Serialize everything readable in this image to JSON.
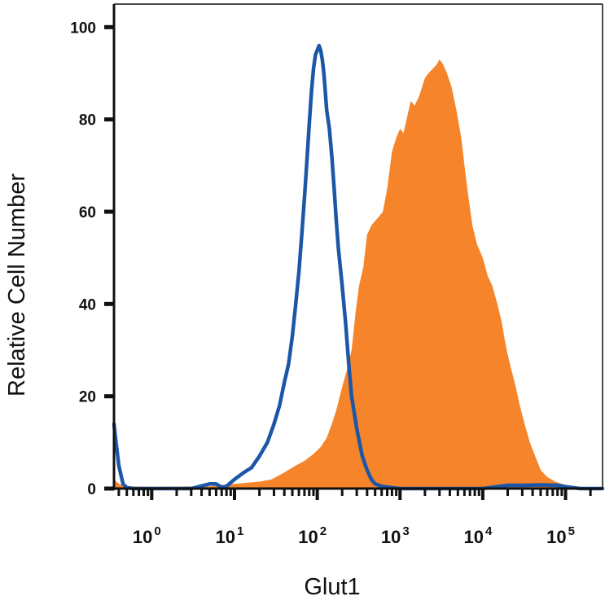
{
  "chart_data": {
    "type": "area",
    "title": "",
    "xlabel": "Glut1",
    "ylabel": "Relative Cell Number",
    "xscale": "log",
    "xlim": [
      0.35,
      280000
    ],
    "ylim": [
      0,
      105
    ],
    "yticks": [
      0,
      20,
      40,
      60,
      80,
      100
    ],
    "xticks": [
      {
        "value": 1,
        "base": "10",
        "exp": "0"
      },
      {
        "value": 10,
        "base": "10",
        "exp": "1"
      },
      {
        "value": 100,
        "base": "10",
        "exp": "2"
      },
      {
        "value": 1000,
        "base": "10",
        "exp": "3"
      },
      {
        "value": 10000,
        "base": "10",
        "exp": "4"
      },
      {
        "value": 100000,
        "base": "10",
        "exp": "5"
      }
    ],
    "grid": false,
    "series": [
      {
        "style": "filled",
        "color": "#F5842A",
        "x": [
          0.35,
          0.4,
          0.5,
          1,
          5,
          10,
          20,
          28,
          40,
          55,
          70,
          90,
          110,
          130,
          150,
          170,
          200,
          230,
          260,
          290,
          320,
          360,
          400,
          450,
          500,
          560,
          620,
          700,
          800,
          900,
          1000,
          1100,
          1200,
          1350,
          1500,
          1700,
          2000,
          2200,
          2500,
          2800,
          3000,
          3300,
          3700,
          4200,
          4800,
          5500,
          6000,
          6500,
          7500,
          8500,
          10000,
          11500,
          13000,
          15000,
          17000,
          18500,
          20000,
          22000,
          25000,
          28000,
          32000,
          37000,
          43000,
          50000,
          60000,
          75000,
          90000,
          110000,
          140000,
          280000
        ],
        "y": [
          2,
          1,
          0.5,
          0.4,
          0.5,
          1,
          1.5,
          2,
          3.5,
          5,
          6,
          7.5,
          9,
          11,
          14,
          17,
          22,
          26,
          30,
          38,
          44,
          48,
          55,
          57,
          58,
          59,
          60,
          65,
          73,
          76,
          78,
          77,
          80,
          84,
          83,
          85,
          89,
          90,
          91,
          92,
          93,
          92,
          90,
          87,
          82,
          76,
          70,
          65,
          57,
          53,
          50,
          46,
          44,
          40,
          36,
          32,
          29,
          26,
          22,
          18,
          14,
          10,
          7,
          4,
          2.5,
          1.5,
          1,
          0.6,
          0.3,
          0.3
        ]
      },
      {
        "style": "line",
        "color": "#1B57A6",
        "x": [
          0.35,
          0.37,
          0.4,
          0.45,
          0.5,
          0.6,
          1,
          3,
          5,
          6,
          7,
          8,
          10,
          13,
          16,
          20,
          25,
          30,
          35,
          40,
          45,
          50,
          55,
          60,
          65,
          70,
          75,
          80,
          85,
          90,
          95,
          100,
          105,
          110,
          115,
          120,
          125,
          130,
          140,
          150,
          160,
          170,
          180,
          200,
          220,
          240,
          260,
          300,
          350,
          400,
          450,
          500,
          600,
          800,
          1000,
          5000,
          10000,
          20000,
          30000,
          50000,
          80000,
          100000,
          150000,
          280000
        ],
        "y": [
          14,
          10,
          5,
          1,
          0.2,
          0,
          0,
          0,
          1,
          1,
          0.3,
          0.5,
          2,
          3.5,
          4.5,
          7,
          10,
          14,
          18,
          23,
          27,
          33,
          40,
          47,
          55,
          63,
          71,
          79,
          86,
          91,
          94,
          95,
          96,
          95,
          93,
          90,
          86,
          82,
          78,
          72,
          65,
          58,
          52,
          44,
          36,
          27,
          20,
          13,
          7,
          4,
          2,
          1,
          0.5,
          0.2,
          0,
          0,
          0,
          0.7,
          0.7,
          0.8,
          0.7,
          0.4,
          0,
          0
        ]
      }
    ]
  }
}
